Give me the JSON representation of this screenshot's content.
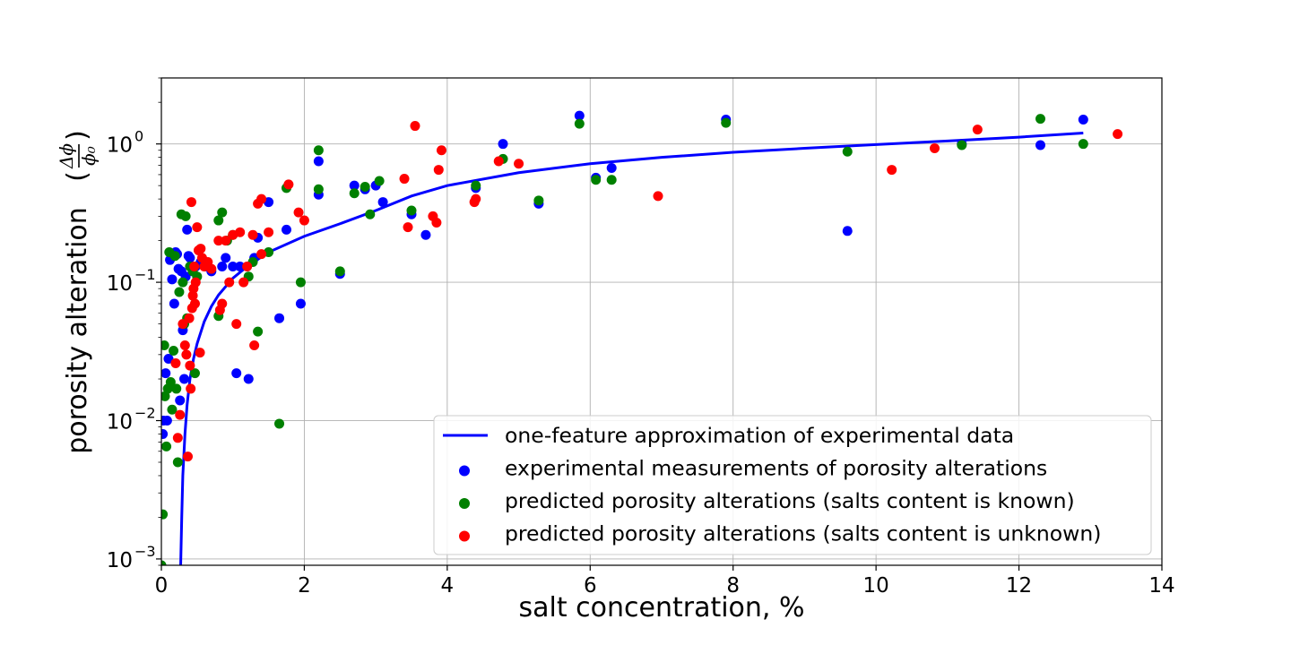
{
  "chart_data": {
    "type": "scatter",
    "title": "",
    "xlabel": "salt concentration, %",
    "ylabel": "porosity alteration",
    "ylabel_fraction": {
      "numerator": "Δϕ",
      "denominator": "ϕ₀"
    },
    "xlim": [
      0,
      14
    ],
    "ylim": [
      0.0009,
      3.0
    ],
    "yscale": "log",
    "grid": true,
    "legend_position": "lower-right",
    "x_ticks": [
      "0",
      "2",
      "4",
      "6",
      "8",
      "10",
      "12",
      "14"
    ],
    "y_ticks": [
      {
        "value": 0.001,
        "base": "10",
        "exp": "−3"
      },
      {
        "value": 0.01,
        "base": "10",
        "exp": "−2"
      },
      {
        "value": 0.1,
        "base": "10",
        "exp": "−1"
      },
      {
        "value": 1,
        "base": "10",
        "exp": "0"
      }
    ],
    "series": [
      {
        "name": "one-feature approximation of experimental data",
        "kind": "line",
        "color": "#0000ff",
        "points": [
          [
            0.27,
            0.0009
          ],
          [
            0.285,
            0.002
          ],
          [
            0.3,
            0.004
          ],
          [
            0.33,
            0.008
          ],
          [
            0.36,
            0.013
          ],
          [
            0.4,
            0.02
          ],
          [
            0.45,
            0.028
          ],
          [
            0.5,
            0.036
          ],
          [
            0.6,
            0.052
          ],
          [
            0.7,
            0.067
          ],
          [
            0.8,
            0.081
          ],
          [
            1.0,
            0.107
          ],
          [
            1.2,
            0.13
          ],
          [
            1.5,
            0.165
          ],
          [
            2.0,
            0.215
          ],
          [
            2.5,
            0.265
          ],
          [
            3.0,
            0.33
          ],
          [
            3.5,
            0.42
          ],
          [
            4.0,
            0.5
          ],
          [
            5.0,
            0.62
          ],
          [
            6.0,
            0.72
          ],
          [
            7.0,
            0.8
          ],
          [
            8.0,
            0.87
          ],
          [
            9.0,
            0.93
          ],
          [
            10.0,
            0.99
          ],
          [
            11.0,
            1.05
          ],
          [
            12.0,
            1.12
          ],
          [
            12.9,
            1.2
          ]
        ]
      },
      {
        "name": "experimental measurements of porosity alterations",
        "kind": "scatter",
        "color": "#0000ff",
        "points": [
          [
            0.02,
            0.008
          ],
          [
            0.03,
            0.01
          ],
          [
            0.06,
            0.022
          ],
          [
            0.08,
            0.01
          ],
          [
            0.1,
            0.028
          ],
          [
            0.12,
            0.145
          ],
          [
            0.15,
            0.105
          ],
          [
            0.18,
            0.07
          ],
          [
            0.2,
            0.165
          ],
          [
            0.22,
            0.16
          ],
          [
            0.24,
            0.125
          ],
          [
            0.26,
            0.014
          ],
          [
            0.28,
            0.12
          ],
          [
            0.3,
            0.045
          ],
          [
            0.32,
            0.02
          ],
          [
            0.34,
            0.11
          ],
          [
            0.36,
            0.24
          ],
          [
            0.38,
            0.155
          ],
          [
            0.4,
            0.15
          ],
          [
            0.44,
            0.12
          ],
          [
            0.48,
            0.13
          ],
          [
            0.55,
            0.14
          ],
          [
            0.62,
            0.13
          ],
          [
            0.7,
            0.12
          ],
          [
            0.85,
            0.13
          ],
          [
            0.9,
            0.15
          ],
          [
            1.0,
            0.13
          ],
          [
            1.05,
            0.022
          ],
          [
            1.1,
            0.13
          ],
          [
            1.22,
            0.02
          ],
          [
            1.3,
            0.15
          ],
          [
            1.35,
            0.21
          ],
          [
            1.5,
            0.38
          ],
          [
            1.65,
            0.055
          ],
          [
            1.75,
            0.24
          ],
          [
            1.95,
            0.07
          ],
          [
            2.2,
            0.43
          ],
          [
            2.2,
            0.75
          ],
          [
            2.5,
            0.115
          ],
          [
            2.7,
            0.5
          ],
          [
            2.85,
            0.47
          ],
          [
            3.0,
            0.5
          ],
          [
            3.1,
            0.38
          ],
          [
            3.5,
            0.31
          ],
          [
            3.7,
            0.22
          ],
          [
            4.4,
            0.48
          ],
          [
            4.78,
            1.0
          ],
          [
            5.28,
            0.37
          ],
          [
            5.85,
            1.6
          ],
          [
            6.08,
            0.57
          ],
          [
            6.3,
            0.67
          ],
          [
            7.9,
            1.5
          ],
          [
            9.6,
            0.235
          ],
          [
            11.2,
            1.0
          ],
          [
            12.3,
            0.98
          ],
          [
            12.9,
            1.5
          ]
        ]
      },
      {
        "name": "predicted porosity alterations (salts content is known)",
        "kind": "scatter",
        "color": "#008000",
        "points": [
          [
            0.0,
            0.0009
          ],
          [
            0.02,
            0.0021
          ],
          [
            0.04,
            0.035
          ],
          [
            0.05,
            0.015
          ],
          [
            0.07,
            0.0065
          ],
          [
            0.09,
            0.017
          ],
          [
            0.11,
            0.165
          ],
          [
            0.13,
            0.019
          ],
          [
            0.15,
            0.012
          ],
          [
            0.17,
            0.032
          ],
          [
            0.19,
            0.155
          ],
          [
            0.21,
            0.017
          ],
          [
            0.23,
            0.005
          ],
          [
            0.25,
            0.085
          ],
          [
            0.28,
            0.31
          ],
          [
            0.3,
            0.1
          ],
          [
            0.32,
            0.05
          ],
          [
            0.34,
            0.3
          ],
          [
            0.36,
            0.055
          ],
          [
            0.4,
            0.13
          ],
          [
            0.44,
            0.12
          ],
          [
            0.47,
            0.022
          ],
          [
            0.5,
            0.11
          ],
          [
            0.8,
            0.057
          ],
          [
            0.8,
            0.28
          ],
          [
            0.85,
            0.32
          ],
          [
            0.92,
            0.2
          ],
          [
            1.0,
            0.22
          ],
          [
            1.22,
            0.11
          ],
          [
            1.28,
            0.14
          ],
          [
            1.35,
            0.044
          ],
          [
            1.5,
            0.165
          ],
          [
            1.65,
            0.0095
          ],
          [
            1.75,
            0.48
          ],
          [
            1.95,
            0.1
          ],
          [
            2.2,
            0.9
          ],
          [
            2.2,
            0.47
          ],
          [
            2.5,
            0.12
          ],
          [
            2.7,
            0.44
          ],
          [
            2.85,
            0.49
          ],
          [
            2.92,
            0.31
          ],
          [
            3.05,
            0.54
          ],
          [
            3.5,
            0.33
          ],
          [
            4.4,
            0.5
          ],
          [
            4.78,
            0.78
          ],
          [
            5.28,
            0.39
          ],
          [
            5.85,
            1.4
          ],
          [
            6.08,
            0.55
          ],
          [
            6.3,
            0.55
          ],
          [
            7.9,
            1.42
          ],
          [
            9.6,
            0.88
          ],
          [
            11.2,
            0.98
          ],
          [
            12.3,
            1.52
          ],
          [
            12.9,
            1.0
          ]
        ]
      },
      {
        "name": "predicted porosity alterations (salts content is unknown)",
        "kind": "scatter",
        "color": "#ff0000",
        "points": [
          [
            0.2,
            0.026
          ],
          [
            0.23,
            0.0075
          ],
          [
            0.26,
            0.011
          ],
          [
            0.3,
            0.05
          ],
          [
            0.33,
            0.035
          ],
          [
            0.35,
            0.03
          ],
          [
            0.37,
            0.0055
          ],
          [
            0.39,
            0.055
          ],
          [
            0.4,
            0.025
          ],
          [
            0.41,
            0.017
          ],
          [
            0.42,
            0.38
          ],
          [
            0.43,
            0.065
          ],
          [
            0.44,
            0.08
          ],
          [
            0.45,
            0.09
          ],
          [
            0.46,
            0.13
          ],
          [
            0.47,
            0.07
          ],
          [
            0.48,
            0.1
          ],
          [
            0.5,
            0.25
          ],
          [
            0.52,
            0.17
          ],
          [
            0.54,
            0.031
          ],
          [
            0.55,
            0.175
          ],
          [
            0.57,
            0.15
          ],
          [
            0.6,
            0.13
          ],
          [
            0.65,
            0.14
          ],
          [
            0.7,
            0.125
          ],
          [
            0.8,
            0.2
          ],
          [
            0.82,
            0.063
          ],
          [
            0.85,
            0.07
          ],
          [
            0.9,
            0.2
          ],
          [
            0.95,
            0.1
          ],
          [
            1.0,
            0.22
          ],
          [
            1.05,
            0.05
          ],
          [
            1.1,
            0.23
          ],
          [
            1.15,
            0.1
          ],
          [
            1.2,
            0.13
          ],
          [
            1.28,
            0.22
          ],
          [
            1.3,
            0.035
          ],
          [
            1.35,
            0.37
          ],
          [
            1.4,
            0.4
          ],
          [
            1.4,
            0.16
          ],
          [
            1.5,
            0.23
          ],
          [
            1.78,
            0.51
          ],
          [
            1.92,
            0.32
          ],
          [
            2.0,
            0.28
          ],
          [
            3.4,
            0.56
          ],
          [
            3.45,
            0.25
          ],
          [
            3.55,
            1.35
          ],
          [
            3.8,
            0.3
          ],
          [
            3.85,
            0.27
          ],
          [
            3.88,
            0.65
          ],
          [
            3.92,
            0.9
          ],
          [
            4.38,
            0.38
          ],
          [
            4.4,
            0.4
          ],
          [
            4.72,
            0.75
          ],
          [
            5.0,
            0.72
          ],
          [
            6.95,
            0.42
          ],
          [
            10.22,
            0.65
          ],
          [
            10.82,
            0.93
          ],
          [
            11.42,
            1.27
          ],
          [
            13.38,
            1.18
          ]
        ]
      }
    ]
  }
}
